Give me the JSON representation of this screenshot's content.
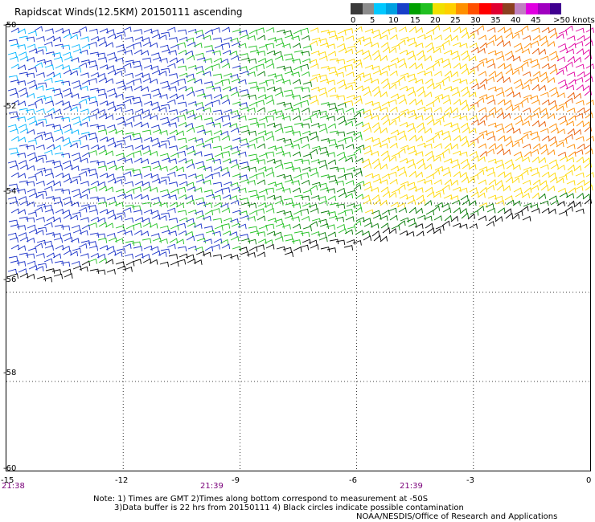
{
  "title": "Rapidscat Winds(12.5KM) 20150111 ascending",
  "legend": {
    "labels": [
      "0",
      "5",
      "10",
      "15",
      "20",
      "25",
      "30",
      "35",
      "40",
      "45",
      ">50 knots"
    ],
    "colors": [
      "#3a3a3a",
      "#8c8c8c",
      "#00c8ff",
      "#00a0e0",
      "#1840c8",
      "#00a000",
      "#20c020",
      "#f0e000",
      "#ffd000",
      "#ff9000",
      "#ff5000",
      "#ff0000",
      "#e00030",
      "#8c4020",
      "#c080c0",
      "#e000e0",
      "#a000c0",
      "#400090"
    ]
  },
  "axes": {
    "lat_labels": [
      "-50",
      "-52",
      "-54",
      "-56",
      "-58",
      "-60"
    ],
    "lon_labels": [
      "-15",
      "-12",
      "-9",
      "-6",
      "-3",
      "0"
    ],
    "time_labels": [
      "21:38",
      "21:39",
      "21:39"
    ]
  },
  "notes": {
    "line1": "Note: 1) Times are GMT 2)Times along bottom correspond to measurement at -50S",
    "line2": "3)Data buffer is 22 hrs from 20150111 4) Black circles indicate possible contamination",
    "line3": "NOAA/NESDIS/Office of Research and Applications"
  },
  "wind_field": {
    "lon_range": [
      -15,
      0
    ],
    "lat_range": [
      -60,
      -50
    ],
    "barb_colors": {
      "dark_blue": "#1830c8",
      "light_blue": "#00b4ff",
      "green": "#20c020",
      "dark_green": "#007800",
      "yellow": "#ffd800",
      "orange": "#ff8c00",
      "red_orange": "#e85a00",
      "magenta": "#e000a0",
      "black": "#000000"
    }
  }
}
